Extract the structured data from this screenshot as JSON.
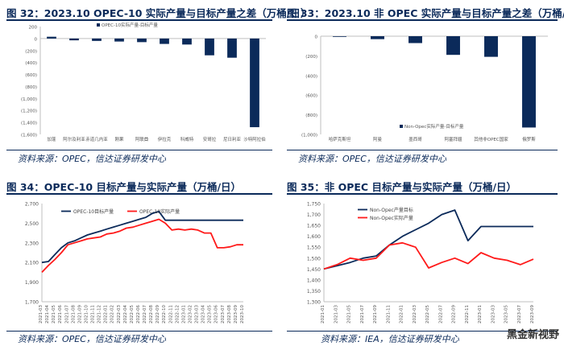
{
  "panels": [
    {
      "title": "图 32：2023.10 OPEC-10 实际产量与目标产量之差（万桶/日）",
      "source": "资料来源：OPEC，信达证券研发中心"
    },
    {
      "title": "图 33：2023.10 非 OPEC 实际产量与目标产量之差（万桶/日）",
      "source": "资料来源：OPEC，信达证券研发中心"
    },
    {
      "title": "图 34：OPEC-10 目标产量与实际产量（万桶/日）",
      "source": "资料来源：OPEC，信达证券研发中心"
    },
    {
      "title": "图 35：非 OPEC 目标产量与实际产量（万桶/日）",
      "source": "资料来源：IEA，信达证券研发中心"
    }
  ],
  "watermark": "黑金新视野",
  "colors": {
    "navy": "#0b2a5a",
    "red": "#ff1a1a",
    "axis": "#bfbfbf"
  },
  "chart_data": [
    {
      "type": "bar",
      "title": "2023.10 OPEC-10 实际产量与目标产量之差",
      "legend": [
        "OPEC-10实际产量-目标产量"
      ],
      "categories": [
        "加蓬",
        "阿尔及利亚",
        "赤道几内亚",
        "刚果",
        "阿联酋",
        "伊拉克",
        "科威特",
        "安哥拉",
        "尼日利亚",
        "沙特阿拉伯"
      ],
      "values": [
        30,
        -30,
        -40,
        -50,
        -60,
        -90,
        -100,
        -280,
        -320,
        -1480
      ],
      "yticks": [
        200,
        0,
        -200,
        -400,
        -600,
        -800,
        -1000,
        -1200,
        -1400,
        -1600
      ],
      "ytick_labels": [
        "200",
        "0",
        "(200)",
        "(400)",
        "(600)",
        "(800)",
        "(1,000)",
        "(1,200)",
        "(1,400)",
        "(1,600)"
      ],
      "ylim": [
        -1600,
        200
      ]
    },
    {
      "type": "bar",
      "title": "2023.10 非 OPEC 实际产量与目标产量之差",
      "legend": [
        "Non-Opec实际产量-目标产量"
      ],
      "categories": [
        "哈萨克斯坦",
        "阿曼",
        "墨西哥",
        "阿塞拜疆",
        "其他非OPEC国家",
        "俄罗斯"
      ],
      "values": [
        0,
        -30,
        -70,
        -190,
        -210,
        -930
      ],
      "yticks": [
        0,
        -200,
        -400,
        -600,
        -800,
        -1000
      ],
      "ytick_labels": [
        "0",
        "(200)",
        "(400)",
        "(600)",
        "(800)",
        "(1,000)"
      ],
      "ylim": [
        -1000,
        0
      ]
    },
    {
      "type": "line",
      "title": "OPEC-10 目标产量与实际产量",
      "x": [
        "2021-03",
        "2021-04",
        "2021-05",
        "2021-06",
        "2021-07",
        "2021-08",
        "2021-09",
        "2021-10",
        "2021-11",
        "2021-12",
        "2022-01",
        "2022-02",
        "2022-03",
        "2022-04",
        "2022-05",
        "2022-06",
        "2022-07",
        "2022-08",
        "2022-09",
        "2022-10",
        "2022-11",
        "2022-12",
        "2023-01",
        "2023-02",
        "2023-03",
        "2023-04",
        "2023-05",
        "2023-06",
        "2023-07",
        "2023-08",
        "2023-09",
        "2023-10"
      ],
      "series": [
        {
          "name": "OPEC-10目标产量",
          "color": "#0b2a5a",
          "values": [
            2100,
            2110,
            2180,
            2250,
            2300,
            2320,
            2350,
            2380,
            2400,
            2420,
            2440,
            2460,
            2480,
            2500,
            2520,
            2540,
            2560,
            2600,
            2620,
            2530,
            2530,
            2530,
            2530,
            2530,
            2530,
            2530,
            2530,
            2530,
            2530,
            2530,
            2530,
            2530
          ]
        },
        {
          "name": "OPEC-10实际产量",
          "color": "#ff1a1a",
          "values": [
            2000,
            2070,
            2130,
            2200,
            2280,
            2300,
            2320,
            2340,
            2350,
            2360,
            2390,
            2400,
            2420,
            2450,
            2460,
            2480,
            2500,
            2520,
            2540,
            2500,
            2430,
            2440,
            2430,
            2440,
            2430,
            2400,
            2400,
            2250,
            2250,
            2260,
            2280,
            2280
          ]
        }
      ],
      "yticks": [
        1700,
        1900,
        2100,
        2300,
        2500,
        2700
      ],
      "ytick_labels": [
        "1,700",
        "1,900",
        "2,100",
        "2,300",
        "2,500",
        "2,700"
      ],
      "ylim": [
        1700,
        2700
      ]
    },
    {
      "type": "line",
      "title": "非 OPEC 目标产量与实际产量",
      "x": [
        "2021-01",
        "2021-03",
        "2021-05",
        "2021-07",
        "2021-09",
        "2021-11",
        "2022-01",
        "2022-03",
        "2022-05",
        "2022-07",
        "2022-09",
        "2022-11",
        "2023-01",
        "2023-03",
        "2023-05",
        "2023-07",
        "2023-09"
      ],
      "series": [
        {
          "name": "Non-Opec产量目标",
          "color": "#0b2a5a",
          "values": [
            1450,
            1465,
            1480,
            1500,
            1510,
            1560,
            1600,
            1630,
            1660,
            1700,
            1720,
            1580,
            1645,
            1645,
            1645,
            1645,
            1645
          ]
        },
        {
          "name": "Non-Opec实际产量",
          "color": "#ff1a1a",
          "values": [
            1450,
            1470,
            1500,
            1490,
            1500,
            1560,
            1570,
            1550,
            1455,
            1480,
            1500,
            1475,
            1525,
            1500,
            1490,
            1470,
            1495
          ]
        }
      ],
      "yticks": [
        1300,
        1350,
        1400,
        1450,
        1500,
        1550,
        1600,
        1650,
        1700,
        1750
      ],
      "ytick_labels": [
        "1,300",
        "1,350",
        "1,400",
        "1,450",
        "1,500",
        "1,550",
        "1,600",
        "1,650",
        "1,700",
        "1,750"
      ],
      "ylim": [
        1300,
        1750
      ]
    }
  ]
}
